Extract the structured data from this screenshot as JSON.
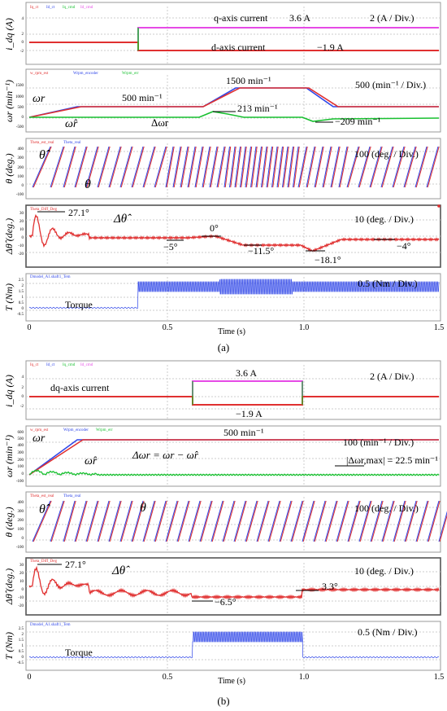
{
  "figure_a": {
    "caption": "(a)",
    "time_axis": {
      "label": "Time (s)",
      "ticks": [
        "0",
        "0.5",
        "1.0",
        "1.5"
      ]
    },
    "panels": [
      {
        "id": "a1",
        "ylabel": "i_dq (A)",
        "legend": [
          "Iq_ct",
          "Id_ct",
          "Iq_cmd",
          "Id_cmd"
        ],
        "yticks": [
          "4",
          "2",
          "0",
          "-2"
        ],
        "scale": "2 (A / Div.)",
        "annotations": [
          "q-axis current",
          "3.6 A",
          "d-axis current",
          "−1.9 A"
        ]
      },
      {
        "id": "a2",
        "ylabel": "ωr (min⁻¹)",
        "legend": [
          "w_rpm_est",
          "Wrpm_encoder",
          "Wrpm_err"
        ],
        "yticks": [
          "1500",
          "1000",
          "500",
          "0",
          "-500"
        ],
        "scale": "500 (min⁻¹ / Div.)",
        "annotations": [
          "ωr",
          "ω̂r",
          "500 min⁻¹",
          "1500 min⁻¹",
          "Δωr",
          "213 min⁻¹",
          "−209 min⁻¹"
        ]
      },
      {
        "id": "a3",
        "ylabel": "θ (deg.)",
        "legend": [
          "Theta_est_real",
          "Theta_real"
        ],
        "yticks": [
          "400",
          "300",
          "200",
          "100",
          "0",
          "-100"
        ],
        "scale": "100 (deg. / Div.)",
        "annotations": [
          "θ̂",
          "θ"
        ]
      },
      {
        "id": "a4",
        "ylabel": "Δθ̂ (deg.)",
        "legend": [
          "Theta_Diff_Deg"
        ],
        "yticks": [
          "30",
          "20",
          "10",
          "0",
          "-10",
          "-20"
        ],
        "scale": "10 (deg. / Div.)",
        "annotations": [
          "27.1°",
          "Δθ̂",
          "0°",
          "−5°",
          "−11.5°",
          "−18.1°",
          "−4°"
        ]
      },
      {
        "id": "a5",
        "ylabel": "T (Nm)",
        "legend": [
          "Dmodel_A1.shaft1_Tem"
        ],
        "yticks": [
          "2.5",
          "2",
          "1.5",
          "1",
          "0.5",
          "0",
          "-0.5"
        ],
        "scale": "0.5 (Nm / Div.)",
        "annotations": [
          "Torque"
        ]
      }
    ]
  },
  "figure_b": {
    "caption": "(b)",
    "time_axis": {
      "label": "Time (s)",
      "ticks": [
        "0",
        "0.5",
        "1.0",
        "1.5"
      ]
    },
    "panels": [
      {
        "id": "b1",
        "ylabel": "i_dq (A)",
        "legend": [
          "Iq_ct",
          "Id_ct",
          "Iq_cmd",
          "Id_cmd"
        ],
        "yticks": [
          "4",
          "2",
          "0",
          "-2"
        ],
        "scale": "2 (A / Div.)",
        "annotations": [
          "dq-axis current",
          "3.6 A",
          "−1.9 A"
        ]
      },
      {
        "id": "b2",
        "ylabel": "ωr (min⁻¹)",
        "legend": [
          "w_rpm_est",
          "Wrpm_encoder",
          "Wrpm_err"
        ],
        "yticks": [
          "600",
          "500",
          "400",
          "300",
          "200",
          "100",
          "0",
          "-100"
        ],
        "scale": "100 (min⁻¹ / Div.)",
        "annotations": [
          "ωr",
          "ω̂r",
          "500 min⁻¹",
          "Δωr = ωr − ω̂r",
          "|Δωr,max| = 22.5 min⁻¹"
        ]
      },
      {
        "id": "b3",
        "ylabel": "θ (deg.)",
        "legend": [
          "Theta_est_real",
          "Theta_real"
        ],
        "yticks": [
          "400",
          "300",
          "200",
          "100",
          "0",
          "-100"
        ],
        "scale": "100 (deg. / Div.)",
        "annotations": [
          "θ̂",
          "θ"
        ]
      },
      {
        "id": "b4",
        "ylabel": "Δθ̂ (deg.)",
        "legend": [
          "Theta_Diff_Deg"
        ],
        "yticks": [
          "30",
          "20",
          "10",
          "0",
          "-10",
          "-20"
        ],
        "scale": "10 (deg. / Div.)",
        "annotations": [
          "27.1°",
          "Δθ̂",
          "3.3°",
          "−6.5°"
        ]
      },
      {
        "id": "b5",
        "ylabel": "T (Nm)",
        "legend": [
          "Dmodel_A1.shaft1_Tem"
        ],
        "yticks": [
          "2.5",
          "2",
          "1.5",
          "1",
          "0.5",
          "0",
          "-0.5"
        ],
        "scale": "0.5 (Nm / Div.)",
        "annotations": [
          "Torque"
        ]
      }
    ]
  },
  "chart_data": [
    {
      "type": "line",
      "panel": "a1",
      "xlim": [
        0,
        1.5
      ],
      "ylim": [
        -3,
        5
      ],
      "series": [
        {
          "name": "Iq_ct",
          "color": "#e64ae6",
          "points": [
            [
              0,
              0
            ],
            [
              0.4,
              0
            ],
            [
              0.4,
              3.6
            ],
            [
              1.5,
              3.6
            ]
          ]
        },
        {
          "name": "Id_ct",
          "color": "#e03030",
          "points": [
            [
              0,
              0
            ],
            [
              0.4,
              0
            ],
            [
              0.4,
              -1.9
            ],
            [
              1.5,
              -1.9
            ]
          ]
        }
      ]
    },
    {
      "type": "line",
      "panel": "a2",
      "xlim": [
        0,
        1.5
      ],
      "ylim": [
        -600,
        1700
      ],
      "series": [
        {
          "name": "w_rpm_est",
          "color": "#e03030",
          "points": [
            [
              0,
              0
            ],
            [
              0.2,
              500
            ],
            [
              0.6,
              500
            ],
            [
              0.72,
              1500
            ],
            [
              1.0,
              1500
            ],
            [
              1.12,
              500
            ],
            [
              1.5,
              500
            ]
          ]
        },
        {
          "name": "Wrpm_encoder",
          "color": "#2f46e8",
          "points": [
            [
              0,
              0
            ],
            [
              0.18,
              500
            ],
            [
              0.6,
              500
            ],
            [
              0.7,
              1500
            ],
            [
              1.0,
              1500
            ],
            [
              1.1,
              500
            ],
            [
              1.5,
              500
            ]
          ]
        },
        {
          "name": "Wrpm_err",
          "color": "#18c030",
          "points": [
            [
              0,
              0
            ],
            [
              0.6,
              0
            ],
            [
              0.68,
              213
            ],
            [
              0.75,
              0
            ],
            [
              1.0,
              0
            ],
            [
              1.08,
              -209
            ],
            [
              1.15,
              0
            ],
            [
              1.5,
              0
            ]
          ]
        }
      ]
    },
    {
      "type": "line",
      "panel": "a3",
      "xlim": [
        0,
        1.5
      ],
      "ylim": [
        -100,
        400
      ],
      "series": [
        {
          "name": "Theta_est_real",
          "color": "#e03030",
          "points": "sawtooth 0-360"
        },
        {
          "name": "Theta_real",
          "color": "#2f46e8",
          "points": "sawtooth 0-360"
        }
      ]
    },
    {
      "type": "line",
      "panel": "a4",
      "xlim": [
        0,
        1.5
      ],
      "ylim": [
        -25,
        35
      ],
      "series": [
        {
          "name": "Theta_Diff_Deg",
          "color": "#e03030",
          "points": [
            [
              0,
              0
            ],
            [
              0.05,
              27.1
            ],
            [
              0.2,
              -2
            ],
            [
              0.5,
              -5
            ],
            [
              0.68,
              0
            ],
            [
              0.75,
              -11.5
            ],
            [
              0.95,
              -11.5
            ],
            [
              1.02,
              -18.1
            ],
            [
              1.15,
              -4
            ],
            [
              1.5,
              -4
            ]
          ]
        }
      ]
    },
    {
      "type": "line",
      "panel": "a5",
      "xlim": [
        0,
        1.5
      ],
      "ylim": [
        -0.6,
        2.6
      ],
      "series": [
        {
          "name": "Dmodel_A1.shaft1_Tem",
          "color": "#2f46e8",
          "points": [
            [
              0,
              0
            ],
            [
              0.4,
              0
            ],
            [
              0.4,
              1.7
            ],
            [
              1.5,
              1.7
            ]
          ]
        }
      ]
    },
    {
      "type": "line",
      "panel": "b1",
      "xlim": [
        0,
        1.5
      ],
      "ylim": [
        -3,
        5
      ],
      "series": [
        {
          "name": "Iq_ct",
          "color": "#e64ae6",
          "points": [
            [
              0,
              0
            ],
            [
              0.6,
              0
            ],
            [
              0.6,
              3.6
            ],
            [
              1.0,
              3.6
            ],
            [
              1.0,
              0
            ],
            [
              1.5,
              0
            ]
          ]
        },
        {
          "name": "Id_ct",
          "color": "#e03030",
          "points": [
            [
              0,
              0
            ],
            [
              0.6,
              0
            ],
            [
              0.6,
              -1.9
            ],
            [
              1.0,
              -1.9
            ],
            [
              1.0,
              0
            ],
            [
              1.5,
              0
            ]
          ]
        }
      ]
    },
    {
      "type": "line",
      "panel": "b2",
      "xlim": [
        0,
        1.5
      ],
      "ylim": [
        -100,
        600
      ],
      "series": [
        {
          "name": "w_rpm_est",
          "color": "#e03030",
          "points": [
            [
              0,
              0
            ],
            [
              0.2,
              500
            ],
            [
              1.5,
              500
            ]
          ]
        },
        {
          "name": "Wrpm_encoder",
          "color": "#2f46e8",
          "points": [
            [
              0,
              0
            ],
            [
              0.18,
              500
            ],
            [
              1.5,
              500
            ]
          ]
        },
        {
          "name": "Wrpm_err",
          "color": "#18c030",
          "points": [
            [
              0,
              0
            ],
            [
              0.05,
              22.5
            ],
            [
              0.3,
              5
            ],
            [
              1.5,
              0
            ]
          ]
        }
      ]
    },
    {
      "type": "line",
      "panel": "b3",
      "xlim": [
        0,
        1.5
      ],
      "ylim": [
        -100,
        400
      ],
      "series": [
        {
          "name": "Theta_est_real",
          "color": "#e03030",
          "points": "sawtooth 0-360"
        },
        {
          "name": "Theta_real",
          "color": "#2f46e8",
          "points": "sawtooth 0-360"
        }
      ]
    },
    {
      "type": "line",
      "panel": "b4",
      "xlim": [
        0,
        1.5
      ],
      "ylim": [
        -25,
        35
      ],
      "series": [
        {
          "name": "Theta_Diff_Deg",
          "color": "#e03030",
          "points": [
            [
              0,
              0
            ],
            [
              0.05,
              27.1
            ],
            [
              0.2,
              0
            ],
            [
              0.6,
              -6.5
            ],
            [
              1.0,
              3.3
            ],
            [
              1.5,
              3.3
            ]
          ]
        }
      ]
    },
    {
      "type": "line",
      "panel": "b5",
      "xlim": [
        0,
        1.5
      ],
      "ylim": [
        -0.6,
        2.6
      ],
      "series": [
        {
          "name": "Dmodel_A1.shaft1_Tem",
          "color": "#2f46e8",
          "points": [
            [
              0,
              0
            ],
            [
              0.6,
              0
            ],
            [
              0.6,
              1.7
            ],
            [
              1.0,
              1.7
            ],
            [
              1.0,
              0
            ],
            [
              1.5,
              0
            ]
          ]
        }
      ]
    }
  ]
}
